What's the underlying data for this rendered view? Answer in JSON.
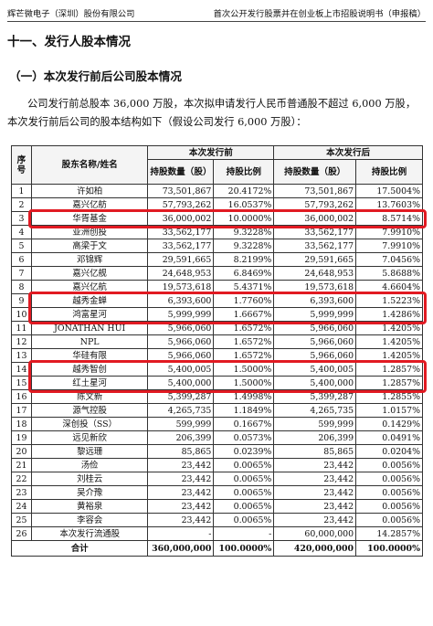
{
  "header": {
    "company": "辉芒微电子（深圳）股份有限公司",
    "doc": "首次公开发行股票并在创业板上市招股说明书（申报稿）"
  },
  "section_title": "十一、发行人股本情况",
  "sub_title": "（一）本次发行前后公司股本情况",
  "paragraph": "公司发行前总股本 36,000 万股，本次拟申请发行人民币普通股不超过 6,000 万股，本次发行前后公司的股本结构如下（假设公司发行 6,000 万股）：",
  "table": {
    "col_seq": "序号",
    "col_name": "股东名称/姓名",
    "group_before": "本次发行前",
    "group_after": "本次发行后",
    "col_shares": "持股数量（股）",
    "col_ratio": "持股比例",
    "rows": [
      {
        "seq": "1",
        "name": "许如柏",
        "pre_shares": "73,501,867",
        "pre_ratio": "20.4172%",
        "post_shares": "73,501,867",
        "post_ratio": "17.5004%"
      },
      {
        "seq": "2",
        "name": "嘉兴亿舫",
        "pre_shares": "57,793,262",
        "pre_ratio": "16.0537%",
        "post_shares": "57,793,262",
        "post_ratio": "13.7603%"
      },
      {
        "seq": "3",
        "name": "华胥基金",
        "pre_shares": "36,000,002",
        "pre_ratio": "10.0000%",
        "post_shares": "36,000,002",
        "post_ratio": "8.5714%"
      },
      {
        "seq": "4",
        "name": "亚洲创投",
        "pre_shares": "33,562,177",
        "pre_ratio": "9.3228%",
        "post_shares": "33,562,177",
        "post_ratio": "7.9910%"
      },
      {
        "seq": "5",
        "name": "高梁于文",
        "pre_shares": "33,562,177",
        "pre_ratio": "9.3228%",
        "post_shares": "33,562,177",
        "post_ratio": "7.9910%"
      },
      {
        "seq": "6",
        "name": "邓锦辉",
        "pre_shares": "29,591,665",
        "pre_ratio": "8.2199%",
        "post_shares": "29,591,665",
        "post_ratio": "7.0456%"
      },
      {
        "seq": "7",
        "name": "嘉兴亿舰",
        "pre_shares": "24,648,953",
        "pre_ratio": "6.8469%",
        "post_shares": "24,648,953",
        "post_ratio": "5.8688%"
      },
      {
        "seq": "8",
        "name": "嘉兴亿航",
        "pre_shares": "19,573,618",
        "pre_ratio": "5.4371%",
        "post_shares": "19,573,618",
        "post_ratio": "4.6604%"
      },
      {
        "seq": "9",
        "name": "越秀金蝉",
        "pre_shares": "6,393,600",
        "pre_ratio": "1.7760%",
        "post_shares": "6,393,600",
        "post_ratio": "1.5223%"
      },
      {
        "seq": "10",
        "name": "鸿富星河",
        "pre_shares": "5,999,999",
        "pre_ratio": "1.6667%",
        "post_shares": "5,999,999",
        "post_ratio": "1.4286%"
      },
      {
        "seq": "11",
        "name": "JONATHAN HUI",
        "pre_shares": "5,966,060",
        "pre_ratio": "1.6572%",
        "post_shares": "5,966,060",
        "post_ratio": "1.4205%"
      },
      {
        "seq": "12",
        "name": "NPL",
        "pre_shares": "5,966,060",
        "pre_ratio": "1.6572%",
        "post_shares": "5,966,060",
        "post_ratio": "1.4205%"
      },
      {
        "seq": "13",
        "name": "华硅有限",
        "pre_shares": "5,966,060",
        "pre_ratio": "1.6572%",
        "post_shares": "5,966,060",
        "post_ratio": "1.4205%"
      },
      {
        "seq": "14",
        "name": "越秀智创",
        "pre_shares": "5,400,005",
        "pre_ratio": "1.5000%",
        "post_shares": "5,400,005",
        "post_ratio": "1.2857%"
      },
      {
        "seq": "15",
        "name": "红土星河",
        "pre_shares": "5,400,000",
        "pre_ratio": "1.5000%",
        "post_shares": "5,400,000",
        "post_ratio": "1.2857%"
      },
      {
        "seq": "16",
        "name": "陈文新",
        "pre_shares": "5,399,287",
        "pre_ratio": "1.4998%",
        "post_shares": "5,399,287",
        "post_ratio": "1.2855%"
      },
      {
        "seq": "17",
        "name": "源气控股",
        "pre_shares": "4,265,735",
        "pre_ratio": "1.1849%",
        "post_shares": "4,265,735",
        "post_ratio": "1.0157%"
      },
      {
        "seq": "18",
        "name": "深创投（SS）",
        "pre_shares": "599,999",
        "pre_ratio": "0.1667%",
        "post_shares": "599,999",
        "post_ratio": "0.1429%"
      },
      {
        "seq": "19",
        "name": "远见新欣",
        "pre_shares": "206,399",
        "pre_ratio": "0.0573%",
        "post_shares": "206,399",
        "post_ratio": "0.0491%"
      },
      {
        "seq": "20",
        "name": "黎远珊",
        "pre_shares": "85,865",
        "pre_ratio": "0.0239%",
        "post_shares": "85,865",
        "post_ratio": "0.0204%"
      },
      {
        "seq": "21",
        "name": "汤俭",
        "pre_shares": "23,442",
        "pre_ratio": "0.0065%",
        "post_shares": "23,442",
        "post_ratio": "0.0056%"
      },
      {
        "seq": "22",
        "name": "刘桂云",
        "pre_shares": "23,442",
        "pre_ratio": "0.0065%",
        "post_shares": "23,442",
        "post_ratio": "0.0056%"
      },
      {
        "seq": "23",
        "name": "吴介豫",
        "pre_shares": "23,442",
        "pre_ratio": "0.0065%",
        "post_shares": "23,442",
        "post_ratio": "0.0056%"
      },
      {
        "seq": "24",
        "name": "黄裕泉",
        "pre_shares": "23,442",
        "pre_ratio": "0.0065%",
        "post_shares": "23,442",
        "post_ratio": "0.0056%"
      },
      {
        "seq": "25",
        "name": "李容会",
        "pre_shares": "23,442",
        "pre_ratio": "0.0065%",
        "post_shares": "23,442",
        "post_ratio": "0.0056%"
      },
      {
        "seq": "26",
        "name": "本次发行流通股",
        "pre_shares": "-",
        "pre_ratio": "-",
        "post_shares": "60,000,000",
        "post_ratio": "14.2857%"
      }
    ],
    "total": {
      "label": "合计",
      "pre_shares": "360,000,000",
      "pre_ratio": "100.0000%",
      "post_shares": "420,000,000",
      "post_ratio": "100.0000%"
    }
  },
  "highlight_color": "#e11a22"
}
